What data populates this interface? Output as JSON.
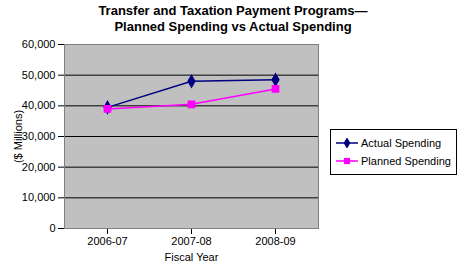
{
  "chart_data": {
    "type": "line",
    "title": "Transfer and Taxation Payment Programs—\nPlanned Spending vs Actual Spending",
    "x_label": "Fiscal Year",
    "y_label": "($ Millions)",
    "categories": [
      "2006-07",
      "2007-08",
      "2008-09"
    ],
    "series": [
      {
        "name": "Actual Spending",
        "color": "#000080",
        "marker": "diamond",
        "values": [
          39500,
          48000,
          48500
        ]
      },
      {
        "name": "Planned Spending",
        "color": "#ff00ff",
        "marker": "square",
        "values": [
          39000,
          40500,
          45500
        ]
      }
    ],
    "ylim": [
      0,
      60000
    ],
    "yticks": [
      0,
      {
        "value": 10000,
        "label": "10,000"
      },
      {
        "value": 20000,
        "label": "20,000"
      },
      {
        "value": 30000,
        "label": "30,000"
      },
      {
        "value": 40000,
        "label": "40,000"
      },
      {
        "value": 50000,
        "label": "50,000"
      },
      {
        "value": 60000,
        "label": "60,000"
      }
    ],
    "grid": true,
    "legend": "right"
  }
}
